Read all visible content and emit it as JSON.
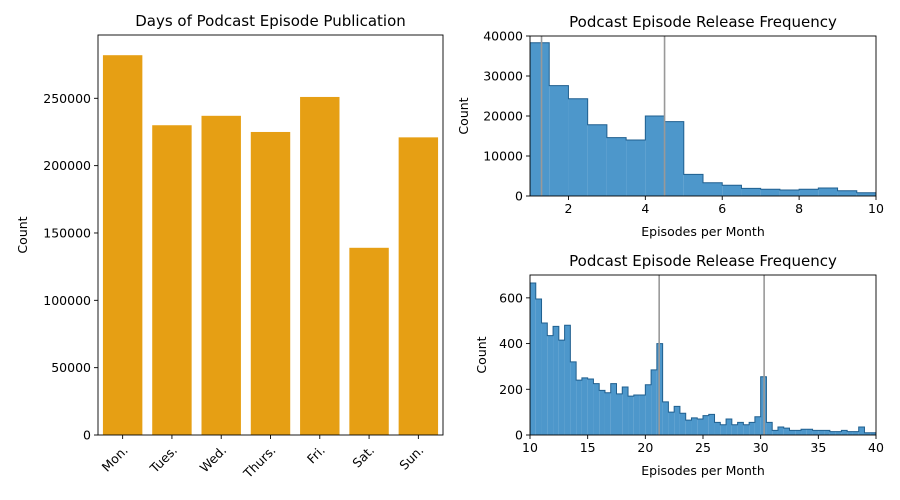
{
  "chart_data": [
    {
      "type": "bar",
      "title": "Days of Podcast Episode Publication",
      "xlabel": "",
      "ylabel": "Count",
      "categories": [
        "Mon.",
        "Tues.",
        "Wed.",
        "Thurs.",
        "Fri.",
        "Sat.",
        "Sun."
      ],
      "values": [
        282000,
        230000,
        237000,
        225000,
        251000,
        139000,
        221000
      ],
      "ylim": [
        0,
        297000
      ],
      "yticks": [
        0,
        50000,
        100000,
        150000,
        200000,
        250000
      ],
      "color": "#e69f14",
      "grid": false
    },
    {
      "type": "histogram",
      "title": "Podcast Episode Release Frequency",
      "xlabel": "Episodes per Month",
      "ylabel": "Count",
      "xlim": [
        1,
        10
      ],
      "ylim": [
        0,
        40000
      ],
      "xticks": [
        2,
        4,
        6,
        8,
        10
      ],
      "yticks": [
        0,
        10000,
        20000,
        30000,
        40000
      ],
      "bin_edges": [
        1,
        1.5,
        2,
        2.5,
        3,
        3.5,
        4,
        4.5,
        5,
        5.5,
        6,
        6.5,
        7,
        7.5,
        8,
        8.5,
        9,
        9.5,
        10
      ],
      "counts": [
        38300,
        27600,
        24300,
        17800,
        14600,
        14000,
        20000,
        18600,
        5400,
        3300,
        2700,
        1900,
        1700,
        1500,
        1700,
        2000,
        1300,
        800
      ],
      "vlines": [
        1.3,
        4.5
      ],
      "color": "#3a8cc5",
      "grid": false
    },
    {
      "type": "histogram",
      "title": "Podcast Episode Release Frequency",
      "xlabel": "Episodes per Month",
      "ylabel": "Count",
      "xlim": [
        10,
        40
      ],
      "ylim": [
        0,
        700
      ],
      "xticks": [
        10,
        15,
        20,
        25,
        30,
        35,
        40
      ],
      "yticks": [
        0,
        200,
        400,
        600
      ],
      "bin_edges": [
        10,
        10.5,
        11,
        11.5,
        12,
        12.5,
        13,
        13.5,
        14,
        14.5,
        15,
        15.5,
        16,
        16.5,
        17,
        17.5,
        18,
        18.5,
        19,
        19.5,
        20,
        20.5,
        21,
        21.5,
        22,
        22.5,
        23,
        23.5,
        24,
        24.5,
        25,
        25.5,
        26,
        26.5,
        27,
        27.5,
        28,
        28.5,
        29,
        29.5,
        30,
        30.5,
        31,
        31.5,
        32,
        32.5,
        33,
        33.5,
        34,
        34.5,
        35,
        35.5,
        36,
        36.5,
        37,
        37.5,
        38,
        38.5,
        39,
        39.5,
        40
      ],
      "counts": [
        665,
        595,
        490,
        435,
        475,
        415,
        480,
        320,
        240,
        250,
        245,
        225,
        195,
        185,
        225,
        180,
        210,
        170,
        175,
        175,
        220,
        285,
        400,
        145,
        100,
        125,
        95,
        65,
        75,
        70,
        85,
        90,
        55,
        45,
        70,
        45,
        55,
        45,
        55,
        80,
        255,
        55,
        20,
        35,
        30,
        20,
        20,
        25,
        25,
        20,
        20,
        20,
        15,
        15,
        20,
        15,
        15,
        35,
        10,
        10
      ],
      "vlines": [
        21.2,
        30.3
      ],
      "color": "#3a8cc5",
      "grid": false
    }
  ]
}
